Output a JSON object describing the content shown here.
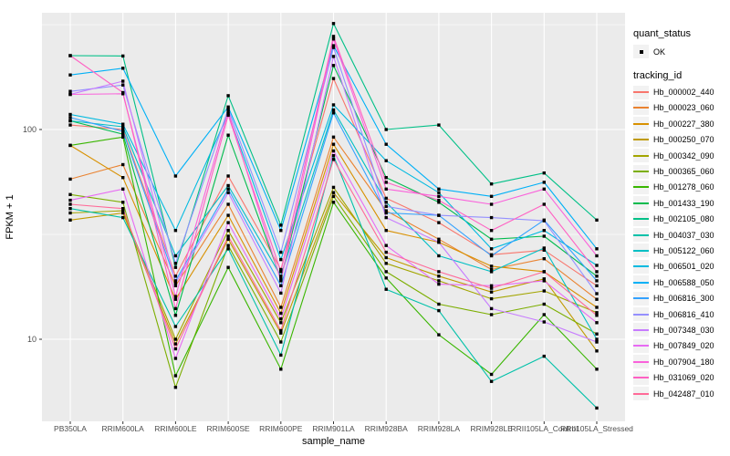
{
  "axes": {
    "x_title": "sample_name",
    "y_title": "FPKM + 1"
  },
  "legend": {
    "quant_status_title": "quant_status",
    "ok_label": "OK",
    "tracking_id_title": "tracking_id"
  },
  "chart_data": {
    "type": "line",
    "xlabel": "sample_name",
    "ylabel": "FPKM + 1",
    "y_scale": "log10",
    "y_major_ticks": [
      100,
      10
    ],
    "y_minor_gridlines": [
      316,
      31.6
    ],
    "ylim_approx": [
      3.8,
      380
    ],
    "grid": "on",
    "legend_position": "right",
    "panel_bg": "#EBEBEB",
    "grid_color": "#FFFFFF",
    "point_color": "#000000",
    "axis_text_color": "#4D4D4D",
    "categories": [
      "PB350LA",
      "RRIM600LA",
      "RRIM600LE",
      "RRIM600SE",
      "RRIM600PE",
      "RRIM901LA",
      "RRIM928BA",
      "RRIM928LA",
      "RRIM928LE",
      "RRII105LA_Control",
      "RRII105LA_Stressed"
    ],
    "series": [
      {
        "name": "Hb_000002_440",
        "color": "#F8766D",
        "values": [
          105,
          100,
          20,
          60,
          21.5,
          175,
          47,
          36,
          25.3,
          26.6,
          18
        ]
      },
      {
        "name": "Hb_000023_060",
        "color": "#EA8331",
        "values": [
          58,
          68,
          18,
          44,
          14.2,
          92,
          41,
          30,
          21.5,
          24.2,
          15.5
        ]
      },
      {
        "name": "Hb_000227_380",
        "color": "#D89000",
        "values": [
          84,
          59,
          15.5,
          39,
          13.3,
          85,
          33,
          29,
          22.3,
          21,
          14.2
        ]
      },
      {
        "name": "Hb_000250_070",
        "color": "#C09B00",
        "values": [
          37,
          40,
          9.5,
          30,
          10.7,
          50,
          24.5,
          20,
          16.8,
          19.4,
          8.8
        ]
      },
      {
        "name": "Hb_000342_090",
        "color": "#A3A500",
        "values": [
          40,
          41,
          10,
          33,
          12,
          53,
          23,
          19,
          15.6,
          17,
          13.4
        ]
      },
      {
        "name": "Hb_000365_060",
        "color": "#7CAE00",
        "values": [
          49,
          45,
          5.9,
          28,
          9.7,
          48,
          21,
          14.7,
          13.1,
          14.7,
          10.6
        ]
      },
      {
        "name": "Hb_001278_060",
        "color": "#39B600",
        "values": [
          84,
          92,
          6.7,
          22,
          7.2,
          45,
          19.6,
          10.5,
          6.8,
          13.1,
          7.2
        ]
      },
      {
        "name": "Hb_001433_190",
        "color": "#00BB4E",
        "values": [
          110,
          95,
          13,
          94,
          19.5,
          202,
          59,
          45,
          30,
          31,
          20
        ]
      },
      {
        "name": "Hb_002105_080",
        "color": "#00C087",
        "values": [
          225,
          224,
          22,
          145,
          35,
          320,
          100,
          105,
          55,
          62,
          37
        ]
      },
      {
        "name": "Hb_004037_030",
        "color": "#00C1A9",
        "values": [
          42,
          38,
          11.5,
          27,
          8.4,
          75,
          17.3,
          13.7,
          6.3,
          8.3,
          4.7
        ]
      },
      {
        "name": "Hb_005122_060",
        "color": "#00BFC4",
        "values": [
          110,
          103,
          25,
          54,
          20,
          124,
          45,
          25,
          21,
          27.2,
          10
        ]
      },
      {
        "name": "Hb_006501_020",
        "color": "#00BAE0",
        "values": [
          118,
          106,
          33,
          119,
          24,
          131,
          71,
          50,
          27,
          33,
          22.5
        ]
      },
      {
        "name": "Hb_006588_050",
        "color": "#00B0F6",
        "values": [
          182,
          196,
          60,
          128,
          33,
          251,
          85,
          52,
          48,
          56,
          27
        ]
      },
      {
        "name": "Hb_006816_300",
        "color": "#35A2FF",
        "values": [
          114,
          98,
          19,
          52,
          18,
          120,
          40,
          39,
          25,
          37,
          19
        ]
      },
      {
        "name": "Hb_006816_410",
        "color": "#9590FF",
        "values": [
          152,
          163,
          23,
          125,
          26,
          246,
          43,
          39,
          38,
          36.7,
          16.5
        ]
      },
      {
        "name": "Hb_007348_030",
        "color": "#C77CFF",
        "values": [
          147,
          170,
          18.5,
          50,
          16.6,
          223,
          38,
          29,
          14,
          12.1,
          9.7
        ]
      },
      {
        "name": "Hb_007849_020",
        "color": "#E76BF3",
        "values": [
          46,
          52,
          8.1,
          36,
          12.5,
          79,
          28,
          18.3,
          18,
          19,
          12
        ]
      },
      {
        "name": "Hb_007904_180",
        "color": "#FA62DB",
        "values": [
          147,
          148,
          16,
          122,
          19,
          270,
          52,
          48,
          44,
          52,
          25
        ]
      },
      {
        "name": "Hb_031069_020",
        "color": "#FF61C3",
        "values": [
          225,
          150,
          14,
          117,
          21,
          278,
          56,
          46,
          33,
          44,
          21
        ]
      },
      {
        "name": "Hb_042487_010",
        "color": "#FF6A98",
        "values": [
          44,
          42,
          9,
          31,
          11,
          72,
          26,
          21,
          17.5,
          21,
          13
        ]
      }
    ]
  }
}
